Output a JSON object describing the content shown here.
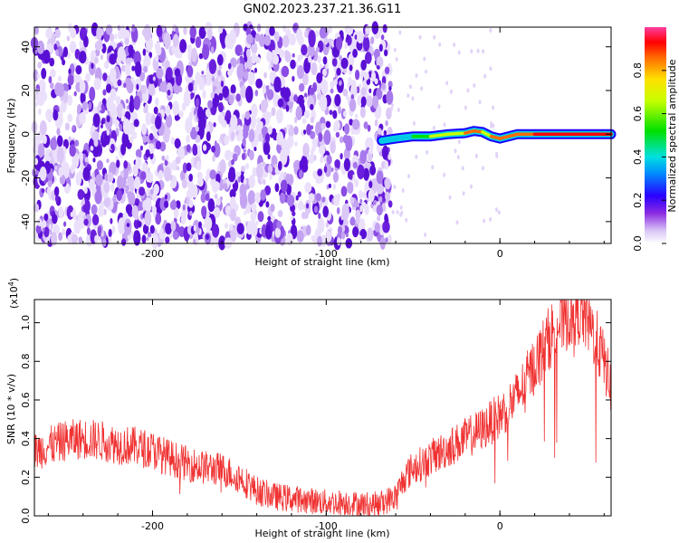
{
  "title": "GN02.2023.237.21.36.G11",
  "chart_data": [
    {
      "type": "heatmap",
      "xlabel": "Height of straight line (km)",
      "ylabel": "Frequency (Hz)",
      "xlim": [
        -268,
        64
      ],
      "ylim": [
        -50,
        49
      ],
      "x_ticks": [
        "-200",
        "-100",
        "0"
      ],
      "y_ticks": [
        "-40",
        "-20",
        "0",
        "20",
        "40"
      ],
      "colorbar": {
        "label": "Normalized spectral amplitude",
        "range": [
          0,
          1
        ],
        "ticks": [
          "0.0",
          "0.2",
          "0.4",
          "0.6",
          "0.8"
        ]
      },
      "noise_region_x": [
        -268,
        -63
      ],
      "signal_ridge": [
        {
          "x": -68,
          "y": -3,
          "amp": 0.2
        },
        {
          "x": -60,
          "y": -2,
          "amp": 0.3
        },
        {
          "x": -50,
          "y": -1,
          "amp": 0.45
        },
        {
          "x": -40,
          "y": -1,
          "amp": 0.5
        },
        {
          "x": -30,
          "y": 0,
          "amp": 0.75
        },
        {
          "x": -20,
          "y": 0.5,
          "amp": 0.6
        },
        {
          "x": -15,
          "y": 1.5,
          "amp": 0.85
        },
        {
          "x": -10,
          "y": 1,
          "amp": 0.6
        },
        {
          "x": -5,
          "y": -1,
          "amp": 0.6
        },
        {
          "x": 0,
          "y": -2,
          "amp": 0.85
        },
        {
          "x": 10,
          "y": 0,
          "amp": 0.7
        },
        {
          "x": 20,
          "y": 0,
          "amp": 0.9
        },
        {
          "x": 40,
          "y": 0,
          "amp": 1.0
        },
        {
          "x": 64,
          "y": 0,
          "amp": 1.0
        }
      ]
    },
    {
      "type": "line",
      "xlabel": "Height of straight line (km)",
      "ylabel": "SNR (10 * v/v)",
      "y_multiplier": "(x10",
      "y_multiplier_exp": "4",
      "y_multiplier_close": ")",
      "xlim": [
        -268,
        64
      ],
      "ylim": [
        0,
        1.12
      ],
      "x_ticks": [
        "-200",
        "-100",
        "0"
      ],
      "y_ticks": [
        "0.0",
        "0.2",
        "0.4",
        "0.6",
        "0.8",
        "1.0"
      ],
      "line_color": "#f03232",
      "series": [
        {
          "x": [
            -268,
            -260,
            -250,
            -240,
            -230,
            -220,
            -210,
            -200,
            -190,
            -180,
            -170,
            -160,
            -150,
            -140,
            -130,
            -120,
            -110,
            -100,
            -90,
            -80,
            -70,
            -60,
            -55,
            -50,
            -45,
            -40,
            -30,
            -20,
            -10,
            0,
            10,
            20,
            30,
            40,
            45,
            50,
            55,
            60,
            64
          ],
          "y": [
            0.33,
            0.36,
            0.39,
            0.4,
            0.39,
            0.37,
            0.36,
            0.34,
            0.3,
            0.27,
            0.25,
            0.24,
            0.2,
            0.13,
            0.1,
            0.09,
            0.08,
            0.07,
            0.07,
            0.06,
            0.06,
            0.1,
            0.2,
            0.25,
            0.27,
            0.3,
            0.35,
            0.4,
            0.45,
            0.52,
            0.62,
            0.78,
            0.95,
            1.05,
            1.07,
            1.02,
            0.92,
            0.8,
            0.66
          ]
        }
      ]
    }
  ]
}
